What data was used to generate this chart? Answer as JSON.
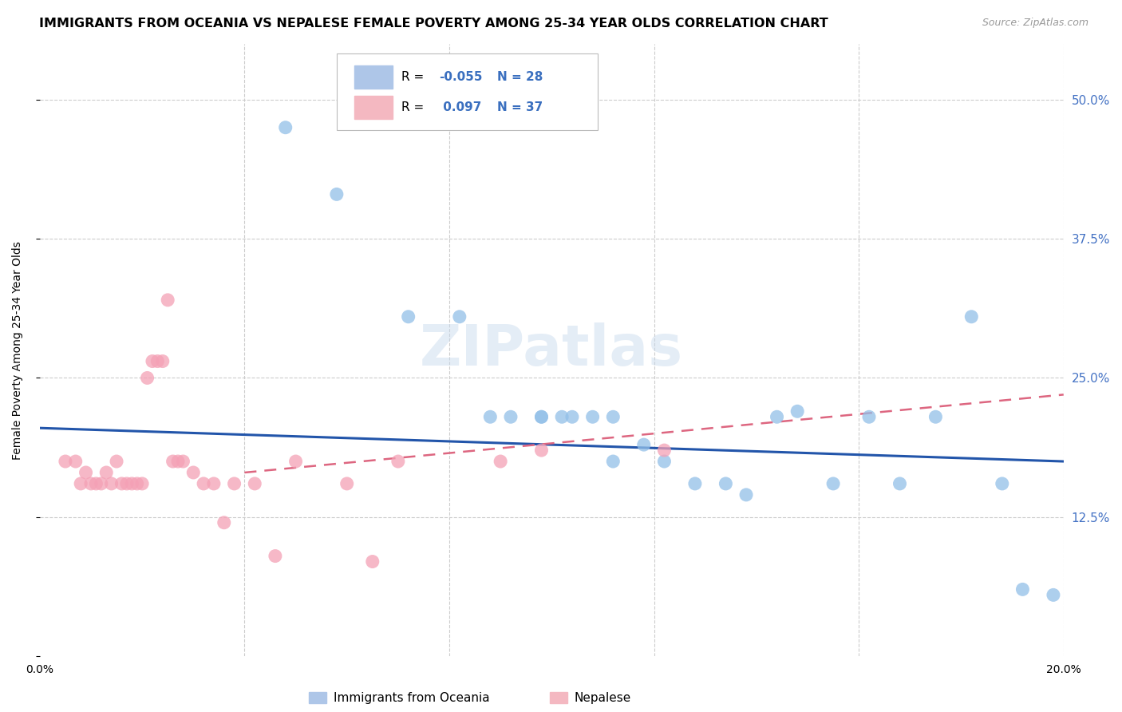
{
  "title": "IMMIGRANTS FROM OCEANIA VS NEPALESE FEMALE POVERTY AMONG 25-34 YEAR OLDS CORRELATION CHART",
  "source": "Source: ZipAtlas.com",
  "ylabel": "Female Poverty Among 25-34 Year Olds",
  "xlim": [
    0.0,
    0.2
  ],
  "ylim": [
    0.0,
    0.55
  ],
  "xtick_vals": [
    0.0,
    0.04,
    0.08,
    0.12,
    0.16,
    0.2
  ],
  "xtick_labels": [
    "0.0%",
    "",
    "",
    "",
    "",
    "20.0%"
  ],
  "ytick_vals": [
    0.0,
    0.125,
    0.25,
    0.375,
    0.5
  ],
  "ytick_labels": [
    "",
    "12.5%",
    "25.0%",
    "37.5%",
    "50.0%"
  ],
  "watermark": "ZIPatlas",
  "blue_scatter_x": [
    0.048,
    0.058,
    0.072,
    0.082,
    0.088,
    0.092,
    0.098,
    0.098,
    0.102,
    0.104,
    0.108,
    0.112,
    0.112,
    0.118,
    0.122,
    0.128,
    0.134,
    0.138,
    0.144,
    0.148,
    0.155,
    0.162,
    0.168,
    0.175,
    0.182,
    0.188,
    0.192,
    0.198
  ],
  "blue_scatter_y": [
    0.475,
    0.415,
    0.305,
    0.305,
    0.215,
    0.215,
    0.215,
    0.215,
    0.215,
    0.215,
    0.215,
    0.175,
    0.215,
    0.19,
    0.175,
    0.155,
    0.155,
    0.145,
    0.215,
    0.22,
    0.155,
    0.215,
    0.155,
    0.215,
    0.305,
    0.155,
    0.06,
    0.055
  ],
  "pink_scatter_x": [
    0.005,
    0.007,
    0.008,
    0.009,
    0.01,
    0.011,
    0.012,
    0.013,
    0.014,
    0.015,
    0.016,
    0.017,
    0.018,
    0.019,
    0.02,
    0.021,
    0.022,
    0.023,
    0.024,
    0.025,
    0.026,
    0.027,
    0.028,
    0.03,
    0.032,
    0.034,
    0.036,
    0.038,
    0.042,
    0.046,
    0.05,
    0.06,
    0.065,
    0.07,
    0.09,
    0.098,
    0.122
  ],
  "pink_scatter_y": [
    0.175,
    0.175,
    0.155,
    0.165,
    0.155,
    0.155,
    0.155,
    0.165,
    0.155,
    0.175,
    0.155,
    0.155,
    0.155,
    0.155,
    0.155,
    0.25,
    0.265,
    0.265,
    0.265,
    0.32,
    0.175,
    0.175,
    0.175,
    0.165,
    0.155,
    0.155,
    0.12,
    0.155,
    0.155,
    0.09,
    0.175,
    0.155,
    0.085,
    0.175,
    0.175,
    0.185,
    0.185
  ],
  "blue_line_x": [
    0.0,
    0.2
  ],
  "blue_line_y": [
    0.205,
    0.175
  ],
  "pink_line_x": [
    0.04,
    0.2
  ],
  "pink_line_y": [
    0.165,
    0.235
  ],
  "blue_scatter_color": "#92bfe8",
  "pink_scatter_color": "#f4a0b5",
  "blue_line_color": "#2255aa",
  "pink_line_color": "#dd6680",
  "grid_color": "#cccccc",
  "title_fontsize": 11.5,
  "axis_label_fontsize": 10,
  "tick_fontsize": 10,
  "right_tick_color": "#4472c4"
}
